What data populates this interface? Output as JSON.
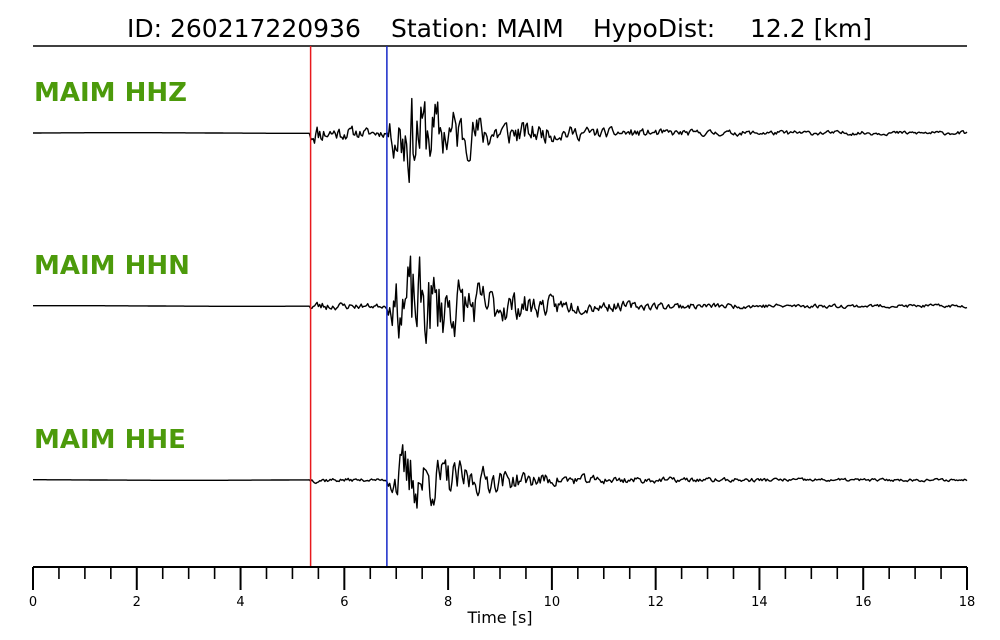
{
  "title": {
    "id_text": "ID: 260217220936",
    "station_text": "Station: MAIM",
    "hypodist_text": "HypoDist:",
    "hypodist_value": "12.2 [km]"
  },
  "colors": {
    "label": "#4c9a0b",
    "p_pick": "#e8191d",
    "s_pick": "#1528c8",
    "trace": "#000000"
  },
  "chart_data": {
    "type": "line",
    "x_range_s": [
      0,
      18
    ],
    "xlabel": "Time [s]",
    "x_ticks": [
      "0",
      "2",
      "4",
      "6",
      "8",
      "10",
      "12",
      "14",
      "16",
      "18"
    ],
    "minor_tick_step_s": 0.5,
    "grid": false,
    "picks": [
      {
        "phase": "P",
        "time_s": 5.35,
        "color": "#e8191d"
      },
      {
        "phase": "S",
        "time_s": 6.82,
        "color": "#1528c8"
      }
    ],
    "series": [
      {
        "name": "MAIM HHZ",
        "seed": 11,
        "noise": 0.022,
        "p_amp": 0.22,
        "s_amp": 0.95,
        "s_peak_s": 7.15
      },
      {
        "name": "MAIM HHN",
        "seed": 23,
        "noise": 0.018,
        "p_amp": 0.1,
        "s_amp": 0.9,
        "s_peak_s": 7.5
      },
      {
        "name": "MAIM HHE",
        "seed": 37,
        "noise": 0.012,
        "p_amp": 0.05,
        "s_amp": 0.75,
        "s_peak_s": 7.0
      }
    ]
  }
}
